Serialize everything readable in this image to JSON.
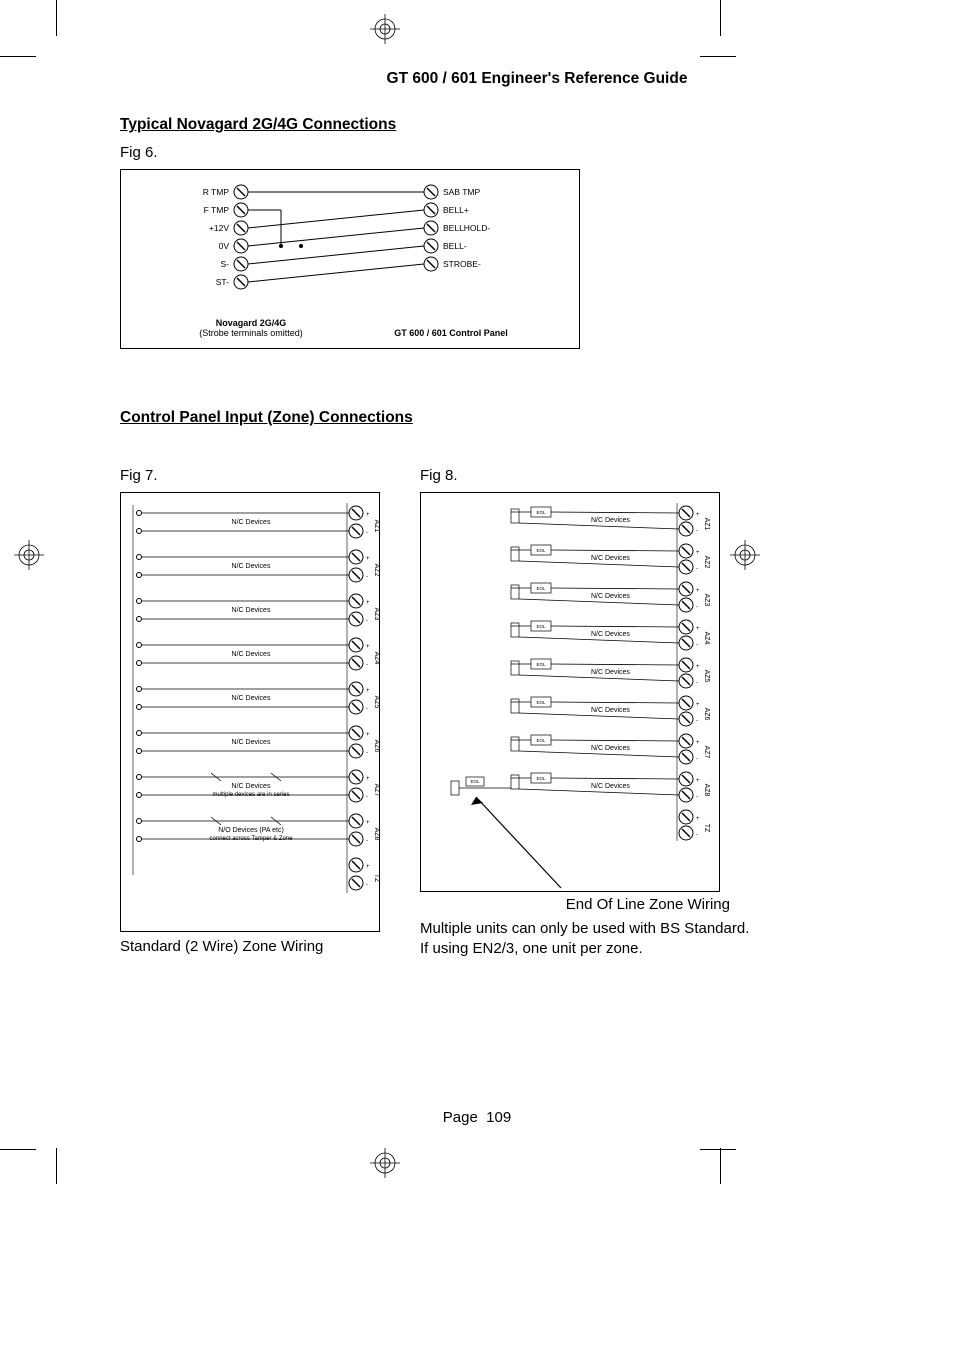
{
  "header": {
    "title": "GT 600 / 601 Engineer's Reference Guide"
  },
  "section1": {
    "heading": "Typical Novagard 2G/4G Connections",
    "fig_label": "Fig 6.",
    "left_terminals": [
      "R TMP",
      "F TMP",
      "+12V",
      "0V",
      "S-",
      "ST-"
    ],
    "right_terminals": [
      "SAB TMP",
      "BELL+",
      "BELLHOLD-",
      "BELL-",
      "STROBE-"
    ],
    "left_caption_bold": "Novagard 2G/4G",
    "left_caption_sub": "(Strobe terminals omitted)",
    "right_caption_bold": "GT 600 / 601 Control Panel"
  },
  "section2": {
    "heading": "Control Panel Input (Zone) Connections",
    "fig7_label": "Fig 7.",
    "fig8_label": "Fig 8.",
    "fig7": {
      "zones": [
        {
          "az": "AZ1",
          "label": "N/C Devices"
        },
        {
          "az": "AZ2",
          "label": "N/C Devices"
        },
        {
          "az": "AZ3",
          "label": "N/C Devices"
        },
        {
          "az": "AZ4",
          "label": "N/C Devices"
        },
        {
          "az": "AZ5",
          "label": "N/C Devices"
        },
        {
          "az": "AZ6",
          "label": "N/C Devices"
        },
        {
          "az": "AZ7",
          "label": "N/C Devices",
          "sub": "multiple devices are in series"
        },
        {
          "az": "AZ8",
          "label": "N/O Devices (PA etc)",
          "sub": "connect across Tamper & Zone"
        }
      ],
      "tz": "TZ",
      "caption": "Standard (2 Wire) Zone Wiring"
    },
    "fig8": {
      "zones": [
        {
          "az": "AZ1",
          "res": "EOL",
          "label": "N/C Devices"
        },
        {
          "az": "AZ2",
          "res": "EOL",
          "label": "N/C Devices"
        },
        {
          "az": "AZ3",
          "res": "EOL",
          "label": "N/C Devices"
        },
        {
          "az": "AZ4",
          "res": "EOL",
          "label": "N/C Devices"
        },
        {
          "az": "AZ5",
          "res": "EOL",
          "label": "N/C Devices"
        },
        {
          "az": "AZ6",
          "res": "EOL",
          "label": "N/C Devices"
        },
        {
          "az": "AZ7",
          "res": "EOL",
          "label": "N/C Devices"
        },
        {
          "az": "AZ8",
          "res": "EOL",
          "label": "N/C Devices"
        }
      ],
      "tz": "TZ",
      "caption": "End Of Line Zone Wiring",
      "note": "Multiple units can only be used with BS Standard. If using EN2/3, one unit per zone."
    }
  },
  "footer": {
    "page_label": "Page",
    "page_number": "109"
  },
  "styling": {
    "line_color": "#000000",
    "terminal_radius": 6,
    "zone_row_height": 44,
    "font_tiny": 7,
    "font_small": 8.5,
    "font_body": 15
  }
}
